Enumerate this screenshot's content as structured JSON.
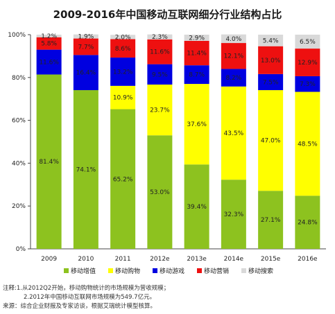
{
  "chart_data": {
    "type": "bar",
    "stacked": true,
    "title": "2009-2016年中国移动互联网细分行业结构占比",
    "categories": [
      "2009",
      "2010",
      "2011",
      "2012e",
      "2013e",
      "2014e",
      "2015e",
      "2016e"
    ],
    "ylim": [
      0,
      100
    ],
    "yticks": [
      "0%",
      "20%",
      "40%",
      "60%",
      "80%",
      "100%"
    ],
    "grid": false,
    "legend_position": "bottom",
    "series": [
      {
        "name": "移动增值",
        "color": "#8DC21F",
        "values": [
          81.4,
          74.1,
          65.2,
          53.0,
          39.4,
          32.3,
          27.1,
          24.8
        ],
        "labels": [
          "81.4%",
          "74.1%",
          "65.2%",
          "53.0%",
          "39.4%",
          "32.3%",
          "27.1%",
          "24.8%"
        ]
      },
      {
        "name": "移动购物",
        "color": "#FFFF00",
        "values": [
          0,
          0,
          10.9,
          23.7,
          37.6,
          43.5,
          47.0,
          48.5
        ],
        "labels": [
          "",
          "",
          "10.9%",
          "23.7%",
          "37.6%",
          "43.5%",
          "47.0%",
          "48.5%"
        ]
      },
      {
        "name": "移动游戏",
        "color": "#0000E0",
        "values": [
          11.6,
          16.4,
          13.2,
          9.5,
          8.7,
          8.2,
          7.5,
          7.3
        ],
        "labels": [
          "11.6%",
          "16.4%",
          "13.2%",
          "9.5%",
          "8.7%",
          "8.2%",
          "7.5%",
          "7.3%"
        ]
      },
      {
        "name": "移动营销",
        "color": "#EE1010",
        "values": [
          5.8,
          7.7,
          8.6,
          11.6,
          11.4,
          12.1,
          13.0,
          12.9
        ],
        "labels": [
          "5.8%",
          "7.7%",
          "8.6%",
          "11.6%",
          "11.4%",
          "12.1%",
          "13.0%",
          "12.9%"
        ]
      },
      {
        "name": "移动搜索",
        "color": "#D9D9D9",
        "values": [
          1.2,
          1.9,
          2.0,
          2.3,
          2.9,
          4.0,
          5.4,
          6.5
        ],
        "labels": [
          "1.2%",
          "1.9%",
          "2.0%",
          "2.3%",
          "2.9%",
          "4.0%",
          "5.4%",
          "6.5%"
        ]
      }
    ]
  },
  "notes": {
    "line1": "注释:1.从2012Q2开始，移动购物统计的市场规模为营收规模；",
    "line2": "2.2012年中国移动互联网市场规模为549.7亿元。",
    "line3": "来源：综合企业财报及专家访谈，根据艾瑞统计模型核算。"
  }
}
